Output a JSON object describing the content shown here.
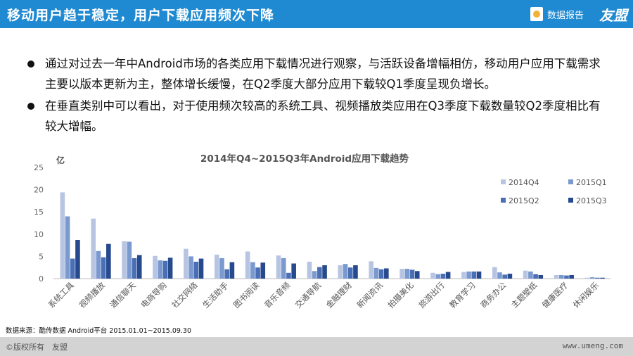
{
  "header": {
    "title": "移动用户趋于稳定，用户下载应用频次下降",
    "report_label": "数据报告",
    "brand": "友盟"
  },
  "bullets": [
    "通过对过去一年中Android市场的各类应用下载情况进行观察，与活跃设备增幅相仿，移动用户应用下载需求主要以版本更新为主，整体增长缓慢，在Q2季度大部分应用下载较Q1季度呈现负增长。",
    "在垂直类别中可以看出，对于使用频次较高的系统工具、视频播放类应用在Q3季度下载数量较Q2季度相比有较大增幅。"
  ],
  "chart_data": {
    "type": "bar",
    "title": "2014年Q4~2015Q3年Android应用下载趋势",
    "ylabel": "亿",
    "ylim": [
      0,
      25
    ],
    "yticks": [
      0,
      5,
      10,
      15,
      20,
      25
    ],
    "legend_position": "top-right",
    "grid": false,
    "categories": [
      "系统工具",
      "视频播放",
      "通信聊天",
      "电商导购",
      "社交网络",
      "生活助手",
      "图书阅读",
      "音乐音频",
      "交通导航",
      "金融理财",
      "新闻资讯",
      "拍摄美化",
      "旅游出行",
      "教育学习",
      "商务办公",
      "主题壁纸",
      "健康医疗",
      "休闲娱乐"
    ],
    "series": [
      {
        "name": "2014Q4",
        "color": "#b7c5e3",
        "values": [
          19.4,
          13.5,
          8.4,
          5.1,
          6.7,
          5.4,
          6.1,
          5.2,
          3.8,
          3.0,
          3.9,
          2.2,
          1.3,
          1.5,
          2.6,
          1.8,
          0.8,
          0.2
        ]
      },
      {
        "name": "2015Q1",
        "color": "#7a99cf",
        "values": [
          14.0,
          6.2,
          8.3,
          4.1,
          5.0,
          4.6,
          3.7,
          4.6,
          1.7,
          3.3,
          2.4,
          2.2,
          1.0,
          1.6,
          1.4,
          1.6,
          0.8,
          0.3
        ]
      },
      {
        "name": "2015Q2",
        "color": "#4a6fb5",
        "values": [
          4.5,
          4.8,
          4.6,
          4.0,
          3.8,
          2.1,
          2.5,
          1.3,
          2.6,
          2.5,
          2.1,
          2.0,
          1.1,
          1.6,
          0.9,
          1.0,
          0.7,
          0.2
        ]
      },
      {
        "name": "2015Q3",
        "color": "#274a8e",
        "values": [
          8.7,
          7.8,
          5.3,
          4.7,
          4.5,
          3.7,
          3.6,
          3.4,
          3.0,
          3.0,
          2.3,
          1.7,
          1.5,
          1.6,
          1.1,
          0.8,
          0.8,
          0.2
        ]
      }
    ]
  },
  "source": "数据来源：酷传数据 Android平台 2015.01.01~2015.09.30",
  "footer": {
    "copyright": "©版权所有　友盟",
    "url": "www.umeng.com"
  }
}
